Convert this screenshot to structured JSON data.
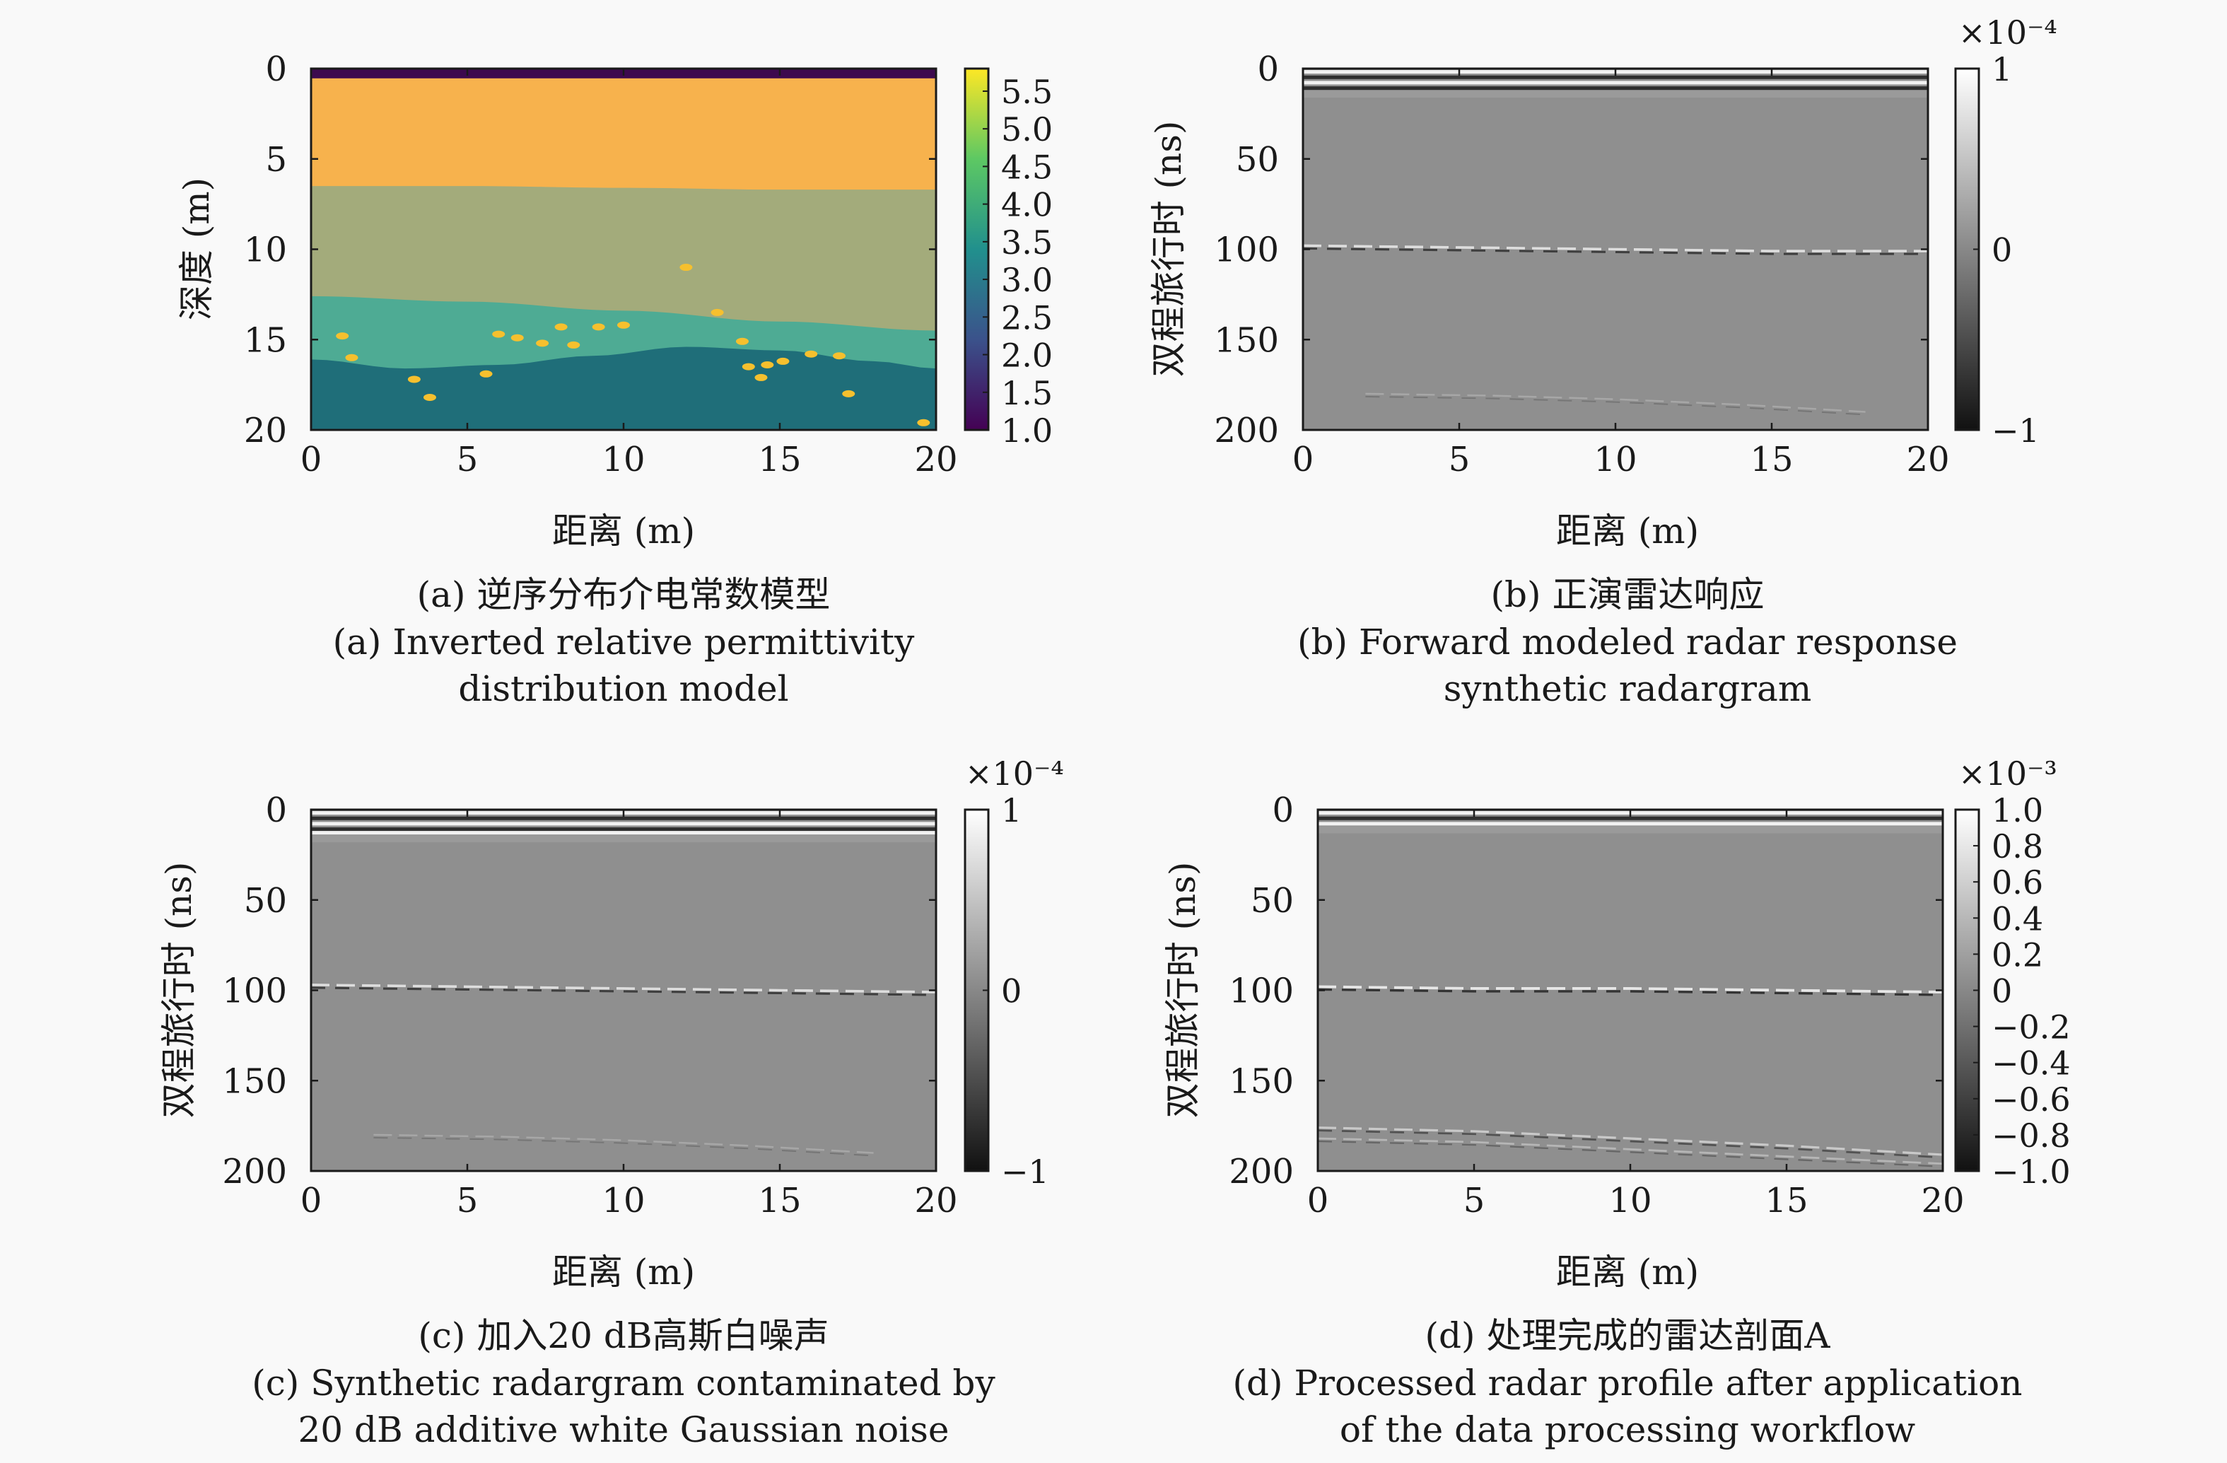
{
  "colors": {
    "background": "#f9f9f9",
    "axis": "#1a1a1a",
    "viridis_stops": [
      "#440154",
      "#3b528b",
      "#21908d",
      "#5dc863",
      "#fde725"
    ],
    "layer_top_strip": "#3d0a4e",
    "layer_upper": "#f7b24d",
    "layer_middle": "#a3ab7b",
    "layer_lower": "#4eab94",
    "layer_bottom": "#1f6e79",
    "inclusions": "#f6c02e",
    "radar_gray": "#8f8f8f"
  },
  "chart_data": [
    {
      "id": "a",
      "type": "heatmap",
      "title": "",
      "xlabel": "距离 (m)",
      "ylabel": "深度 (m)",
      "xlim": [
        0,
        20
      ],
      "ylim": [
        0,
        20
      ],
      "x_ticks": [
        "0",
        "5",
        "10",
        "15",
        "20"
      ],
      "y_ticks": [
        "0",
        "5",
        "10",
        "15",
        "20"
      ],
      "x_tick_values": [
        0,
        5,
        10,
        15,
        20
      ],
      "y_tick_values": [
        0,
        5,
        10,
        15,
        20
      ],
      "colorbar": {
        "range": [
          1.0,
          5.8
        ],
        "ticks": [
          "1.0",
          "1.5",
          "2.0",
          "2.5",
          "3.0",
          "3.5",
          "4.0",
          "4.5",
          "5.0",
          "5.5"
        ],
        "tick_values": [
          1.0,
          1.5,
          2.0,
          2.5,
          3.0,
          3.5,
          4.0,
          4.5,
          5.0,
          5.5
        ],
        "exponent": "",
        "colormap": "viridis"
      },
      "layers": [
        {
          "top_depth": 0,
          "bottom_depth": 0.5,
          "permittivity": 1.0
        },
        {
          "top_depth": 0.5,
          "bottom_depth": 6.8,
          "permittivity": 4.7
        },
        {
          "top_depth": 6.8,
          "bottom_depth": 12.8,
          "permittivity": 4.0
        },
        {
          "top_depth": 12.8,
          "bottom_depth": 16.4,
          "permittivity": 3.2
        },
        {
          "top_depth": 16.4,
          "bottom_depth": 20,
          "permittivity": 2.5
        }
      ],
      "interfaces": [
        {
          "name": "upper-interface",
          "x": [
            0,
            5,
            10,
            15,
            20
          ],
          "depth": [
            6.5,
            6.5,
            6.6,
            6.7,
            6.7
          ]
        },
        {
          "name": "middle-interface",
          "x": [
            0,
            5,
            10,
            15,
            20
          ],
          "depth": [
            12.6,
            12.9,
            13.4,
            14.0,
            14.5
          ]
        },
        {
          "name": "lower-interface",
          "x": [
            0,
            3,
            6,
            9,
            12,
            15,
            18,
            20
          ],
          "depth": [
            16.1,
            16.6,
            16.4,
            15.9,
            15.4,
            15.6,
            16.2,
            16.6
          ]
        }
      ],
      "inclusions": [
        {
          "x": 1.0,
          "depth": 14.8
        },
        {
          "x": 1.3,
          "depth": 16.0
        },
        {
          "x": 3.3,
          "depth": 17.2
        },
        {
          "x": 3.8,
          "depth": 18.2
        },
        {
          "x": 5.6,
          "depth": 16.9
        },
        {
          "x": 6.0,
          "depth": 14.7
        },
        {
          "x": 6.6,
          "depth": 14.9
        },
        {
          "x": 7.4,
          "depth": 15.2
        },
        {
          "x": 8.0,
          "depth": 14.3
        },
        {
          "x": 8.4,
          "depth": 15.3
        },
        {
          "x": 9.2,
          "depth": 14.3
        },
        {
          "x": 10.0,
          "depth": 14.2
        },
        {
          "x": 13.8,
          "depth": 15.1
        },
        {
          "x": 14.0,
          "depth": 16.5
        },
        {
          "x": 14.4,
          "depth": 17.1
        },
        {
          "x": 14.6,
          "depth": 16.4
        },
        {
          "x": 15.1,
          "depth": 16.2
        },
        {
          "x": 16.0,
          "depth": 15.8
        },
        {
          "x": 16.9,
          "depth": 15.9
        },
        {
          "x": 17.2,
          "depth": 18.0
        },
        {
          "x": 19.6,
          "depth": 19.6
        },
        {
          "x": 12.0,
          "depth": 11.0
        },
        {
          "x": 13.0,
          "depth": 13.5
        }
      ],
      "caption_cn": "(a) 逆序分布介电常数模型",
      "caption_en": [
        "(a) Inverted relative permittivity",
        "distribution model"
      ]
    },
    {
      "id": "b",
      "type": "heatmap",
      "title": "",
      "xlabel": "距离 (m)",
      "ylabel": "双程旅行时 (ns)",
      "xlim": [
        0,
        20
      ],
      "ylim": [
        0,
        200
      ],
      "x_ticks": [
        "0",
        "5",
        "10",
        "15",
        "20"
      ],
      "y_ticks": [
        "0",
        "50",
        "100",
        "150",
        "200"
      ],
      "x_tick_values": [
        0,
        5,
        10,
        15,
        20
      ],
      "y_tick_values": [
        0,
        50,
        100,
        150,
        200
      ],
      "colorbar": {
        "range": [
          -1,
          1
        ],
        "ticks": [
          "−1",
          "0",
          "1"
        ],
        "tick_values": [
          -1,
          0,
          1
        ],
        "exponent": "×10⁻⁴",
        "colormap": "gray"
      },
      "direct_wave_ns": [
        2,
        5,
        8,
        11
      ],
      "reflections": [
        {
          "x": [
            0,
            5,
            10,
            15,
            20
          ],
          "time_ns": [
            98,
            99,
            100,
            101,
            101
          ],
          "strength": 0.8
        },
        {
          "x": [
            2,
            6,
            10,
            14,
            18
          ],
          "time_ns": [
            180,
            181,
            183,
            186,
            190
          ],
          "strength": 0.25
        }
      ],
      "caption_cn": "(b) 正演雷达响应",
      "caption_en": [
        "(b) Forward modeled radar response",
        "synthetic radargram"
      ]
    },
    {
      "id": "c",
      "type": "heatmap",
      "title": "",
      "xlabel": "距离 (m)",
      "ylabel": "双程旅行时 (ns)",
      "xlim": [
        0,
        20
      ],
      "ylim": [
        0,
        200
      ],
      "x_ticks": [
        "0",
        "5",
        "10",
        "15",
        "20"
      ],
      "y_ticks": [
        "0",
        "50",
        "100",
        "150",
        "200"
      ],
      "x_tick_values": [
        0,
        5,
        10,
        15,
        20
      ],
      "y_tick_values": [
        0,
        50,
        100,
        150,
        200
      ],
      "colorbar": {
        "range": [
          -1,
          1
        ],
        "ticks": [
          "−1",
          "0",
          "1"
        ],
        "tick_values": [
          -1,
          0,
          1
        ],
        "exponent": "×10⁻⁴",
        "colormap": "gray"
      },
      "direct_wave_ns": [
        2,
        5,
        8,
        11,
        13
      ],
      "reflections": [
        {
          "x": [
            0,
            5,
            10,
            15,
            20
          ],
          "time_ns": [
            97,
            98,
            99,
            100,
            101
          ],
          "strength": 0.8
        },
        {
          "x": [
            2,
            6,
            10,
            14,
            18
          ],
          "time_ns": [
            180,
            181,
            183,
            186,
            190
          ],
          "strength": 0.25
        }
      ],
      "caption_cn": "(c) 加入20 dB高斯白噪声",
      "caption_en": [
        "(c) Synthetic radargram contaminated by",
        "20 dB additive white Gaussian noise"
      ]
    },
    {
      "id": "d",
      "type": "heatmap",
      "title": "",
      "xlabel": "距离 (m)",
      "ylabel": "双程旅行时 (ns)",
      "xlim": [
        0,
        20
      ],
      "ylim": [
        0,
        200
      ],
      "x_ticks": [
        "0",
        "5",
        "10",
        "15",
        "20"
      ],
      "y_ticks": [
        "0",
        "50",
        "100",
        "150",
        "200"
      ],
      "x_tick_values": [
        0,
        5,
        10,
        15,
        20
      ],
      "y_tick_values": [
        0,
        50,
        100,
        150,
        200
      ],
      "colorbar": {
        "range": [
          -1.0,
          1.0
        ],
        "ticks": [
          "−1.0",
          "−0.8",
          "−0.6",
          "−0.4",
          "−0.2",
          "0",
          "0.2",
          "0.4",
          "0.6",
          "0.8",
          "1.0"
        ],
        "tick_values": [
          -1.0,
          -0.8,
          -0.6,
          -0.4,
          -0.2,
          0,
          0.2,
          0.4,
          0.6,
          0.8,
          1.0
        ],
        "exponent": "×10⁻³",
        "colormap": "gray"
      },
      "direct_wave_ns": [
        2,
        5,
        8
      ],
      "reflections": [
        {
          "x": [
            0,
            5,
            10,
            15,
            20
          ],
          "time_ns": [
            98,
            99,
            99,
            100,
            101
          ],
          "strength": 0.9
        },
        {
          "x": [
            0,
            5,
            10,
            15,
            20
          ],
          "time_ns": [
            176,
            178,
            182,
            186,
            191
          ],
          "strength": 0.6
        },
        {
          "x": [
            0,
            5,
            10,
            15,
            20
          ],
          "time_ns": [
            182,
            184,
            188,
            192,
            196
          ],
          "strength": 0.4
        }
      ],
      "caption_cn": "(d) 处理完成的雷达剖面A",
      "caption_en": [
        "(d) Processed radar profile after application",
        "of the data processing workflow"
      ]
    }
  ]
}
